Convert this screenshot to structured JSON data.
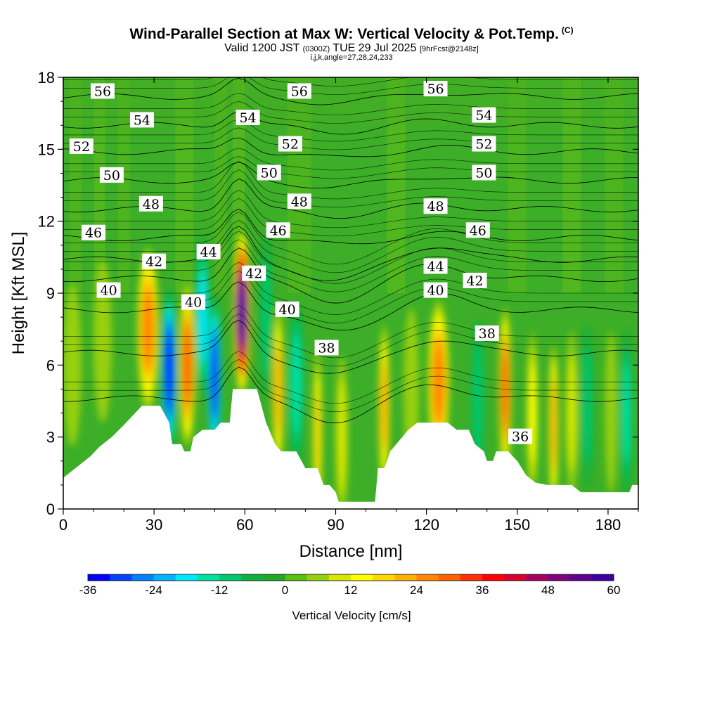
{
  "chart_data": {
    "type": "heatmap",
    "title": "Wind-Parallel Section at Max W: Vertical Velocity & Pot.Temp.",
    "title_mark": "(C)",
    "subtitle": {
      "valid": "Valid 1200 JST",
      "utc": "(0300Z)",
      "date": "TUE 29 Jul 2025",
      "fcst": "[9hrFcst@2148z]"
    },
    "info": "i,j,k,angle=27,28,24,233",
    "xlabel": "Distance [nm]",
    "ylabel": "Height [Kft MSL]",
    "xlim": [
      0,
      190
    ],
    "ylim": [
      0,
      18
    ],
    "x_ticks": [
      0,
      30,
      60,
      90,
      120,
      150,
      180
    ],
    "y_ticks": [
      0,
      3,
      6,
      9,
      12,
      15,
      18
    ],
    "colorbar": {
      "label": "Vertical Velocity [cm/s]",
      "ticks": [
        -36,
        -24,
        -12,
        0,
        12,
        24,
        36,
        48,
        60
      ],
      "range": [
        -36,
        60
      ],
      "colors": [
        "#0000ff",
        "#0040ff",
        "#0080ff",
        "#00b4ff",
        "#00e8ff",
        "#00e0a0",
        "#00c870",
        "#10b040",
        "#20a820",
        "#58c010",
        "#98d010",
        "#d8e800",
        "#ffff00",
        "#ffd800",
        "#ffb000",
        "#ff8800",
        "#ff6000",
        "#ff3000",
        "#ff0000",
        "#d80030",
        "#a80060",
        "#800080",
        "#600090",
        "#4000a0"
      ]
    },
    "terrain_kft": [
      [
        0,
        1.3
      ],
      [
        3,
        1.6
      ],
      [
        6,
        1.9
      ],
      [
        9,
        2.2
      ],
      [
        12,
        2.6
      ],
      [
        16,
        3.0
      ],
      [
        20,
        3.5
      ],
      [
        23,
        3.9
      ],
      [
        26,
        4.3
      ],
      [
        32,
        4.3
      ],
      [
        35,
        3.6
      ],
      [
        36,
        2.7
      ],
      [
        38,
        2.7
      ],
      [
        39,
        2.7
      ],
      [
        40,
        2.4
      ],
      [
        42,
        2.4
      ],
      [
        43,
        3.0
      ],
      [
        46,
        3.3
      ],
      [
        48,
        3.3
      ],
      [
        50,
        3.3
      ],
      [
        52,
        3.6
      ],
      [
        55,
        3.6
      ],
      [
        56,
        5.0
      ],
      [
        64,
        5.0
      ],
      [
        67,
        3.6
      ],
      [
        70,
        2.7
      ],
      [
        72,
        2.4
      ],
      [
        77,
        2.4
      ],
      [
        80,
        1.7
      ],
      [
        84,
        1.7
      ],
      [
        86,
        1.0
      ],
      [
        88,
        1.0
      ],
      [
        90,
        0.7
      ],
      [
        91,
        0.3
      ],
      [
        103,
        0.3
      ],
      [
        104,
        1.7
      ],
      [
        106,
        1.7
      ],
      [
        107,
        2.0
      ],
      [
        108,
        2.4
      ],
      [
        110,
        2.7
      ],
      [
        112,
        3.0
      ],
      [
        114,
        3.3
      ],
      [
        117,
        3.6
      ],
      [
        127,
        3.6
      ],
      [
        130,
        3.3
      ],
      [
        134,
        3.3
      ],
      [
        136,
        2.7
      ],
      [
        139,
        2.4
      ],
      [
        140,
        2.0
      ],
      [
        142,
        2.0
      ],
      [
        143,
        2.4
      ],
      [
        147,
        2.4
      ],
      [
        150,
        2.0
      ],
      [
        153,
        1.4
      ],
      [
        156,
        1.1
      ],
      [
        160,
        1.0
      ],
      [
        168,
        1.0
      ],
      [
        171,
        0.7
      ],
      [
        187,
        0.7
      ],
      [
        188,
        1.0
      ],
      [
        190,
        1.0
      ]
    ],
    "vertical_velocity_cells": [
      {
        "x": 3,
        "y": 6.0,
        "w": 3,
        "peak": 6
      },
      {
        "x": 13,
        "y": 7.0,
        "w": 3,
        "peak": 4
      },
      {
        "x": 28,
        "y": 7.5,
        "w": 3.5,
        "peak": 26
      },
      {
        "x": 35,
        "y": 5.8,
        "w": 2.5,
        "peak": -34
      },
      {
        "x": 41,
        "y": 6.0,
        "w": 2.6,
        "peak": 30
      },
      {
        "x": 46,
        "y": 8.0,
        "w": 2.2,
        "peak": -16
      },
      {
        "x": 50,
        "y": 5.5,
        "w": 2.2,
        "peak": -30
      },
      {
        "x": 59,
        "y": 8.2,
        "w": 2.8,
        "peak": 56
      },
      {
        "x": 67,
        "y": 8.0,
        "w": 2.0,
        "peak": -8
      },
      {
        "x": 71,
        "y": 5.0,
        "w": 1.8,
        "peak": 22
      },
      {
        "x": 77,
        "y": 5.2,
        "w": 2.5,
        "peak": -12
      },
      {
        "x": 84,
        "y": 3.2,
        "w": 1.5,
        "peak": 16
      },
      {
        "x": 92,
        "y": 3.0,
        "w": 2.0,
        "peak": 8
      },
      {
        "x": 106,
        "y": 4.3,
        "w": 1.8,
        "peak": 22
      },
      {
        "x": 115,
        "y": 5.0,
        "w": 2.5,
        "peak": 6
      },
      {
        "x": 124,
        "y": 5.3,
        "w": 3.5,
        "peak": 26
      },
      {
        "x": 137,
        "y": 4.5,
        "w": 2.0,
        "peak": -10
      },
      {
        "x": 146,
        "y": 5.0,
        "w": 2.0,
        "peak": 28
      },
      {
        "x": 155,
        "y": 4.0,
        "w": 1.8,
        "peak": 12
      },
      {
        "x": 162,
        "y": 3.5,
        "w": 1.6,
        "peak": 22
      },
      {
        "x": 168,
        "y": 4.0,
        "w": 2.0,
        "peak": 8
      },
      {
        "x": 173,
        "y": 4.3,
        "w": 2.0,
        "peak": -8
      },
      {
        "x": 181,
        "y": 4.0,
        "w": 2.0,
        "peak": 4
      },
      {
        "x": 186,
        "y": 4.0,
        "w": 2.0,
        "peak": -14
      }
    ],
    "theta_contour_labels": [
      {
        "value": "56",
        "x": 13,
        "y": 17.4
      },
      {
        "value": "56",
        "x": 78,
        "y": 17.4
      },
      {
        "value": "56",
        "x": 123,
        "y": 17.5
      },
      {
        "value": "54",
        "x": 26,
        "y": 16.2
      },
      {
        "value": "54",
        "x": 61,
        "y": 16.3
      },
      {
        "value": "54",
        "x": 139,
        "y": 16.4
      },
      {
        "value": "52",
        "x": 6,
        "y": 15.1
      },
      {
        "value": "52",
        "x": 75,
        "y": 15.2
      },
      {
        "value": "52",
        "x": 139,
        "y": 15.2
      },
      {
        "value": "50",
        "x": 16,
        "y": 13.9
      },
      {
        "value": "50",
        "x": 68,
        "y": 14.0
      },
      {
        "value": "50",
        "x": 139,
        "y": 14.0
      },
      {
        "value": "48",
        "x": 29,
        "y": 12.7
      },
      {
        "value": "48",
        "x": 78,
        "y": 12.8
      },
      {
        "value": "48",
        "x": 123,
        "y": 12.6
      },
      {
        "value": "46",
        "x": 10,
        "y": 11.5
      },
      {
        "value": "46",
        "x": 71,
        "y": 11.6
      },
      {
        "value": "46",
        "x": 137,
        "y": 11.6
      },
      {
        "value": "44",
        "x": 48,
        "y": 10.7
      },
      {
        "value": "44",
        "x": 123,
        "y": 10.1
      },
      {
        "value": "42",
        "x": 30,
        "y": 10.3
      },
      {
        "value": "42",
        "x": 63,
        "y": 9.8
      },
      {
        "value": "42",
        "x": 136,
        "y": 9.5
      },
      {
        "value": "40",
        "x": 15,
        "y": 9.1
      },
      {
        "value": "40",
        "x": 43,
        "y": 8.6
      },
      {
        "value": "40",
        "x": 74,
        "y": 8.3
      },
      {
        "value": "40",
        "x": 123,
        "y": 9.1
      },
      {
        "value": "38",
        "x": 87,
        "y": 6.7
      },
      {
        "value": "38",
        "x": 140,
        "y": 7.3
      },
      {
        "value": "36",
        "x": 151,
        "y": 3.0
      }
    ]
  }
}
